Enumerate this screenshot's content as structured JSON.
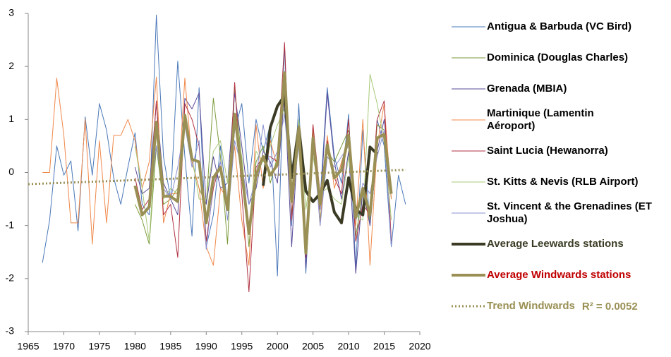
{
  "chart_data": {
    "type": "line",
    "x": [
      1967,
      1968,
      1969,
      1970,
      1971,
      1972,
      1973,
      1974,
      1975,
      1976,
      1977,
      1978,
      1979,
      1980,
      1981,
      1982,
      1983,
      1984,
      1985,
      1986,
      1987,
      1988,
      1989,
      1990,
      1991,
      1992,
      1993,
      1994,
      1995,
      1996,
      1997,
      1998,
      1999,
      2000,
      2001,
      2002,
      2003,
      2004,
      2005,
      2006,
      2007,
      2008,
      2009,
      2010,
      2011,
      2012,
      2013,
      2014,
      2015,
      2016,
      2017,
      2018
    ],
    "xlim": [
      1965,
      2020
    ],
    "xticks": [
      1965,
      1970,
      1975,
      1980,
      1985,
      1990,
      1995,
      2000,
      2005,
      2010,
      2015,
      2020
    ],
    "ylim": [
      -3,
      3
    ],
    "yticks": [
      -3,
      -2,
      -1,
      0,
      1,
      2,
      3
    ],
    "series": [
      {
        "name": "Antigua & Barbuda (VC Bird)",
        "color": "#4a78b8",
        "line_width": 1,
        "values": [
          -1.7,
          -0.9,
          0.5,
          -0.05,
          0.22,
          -1.1,
          1.05,
          -0.05,
          1.3,
          0.8,
          -0.1,
          -0.6,
          0.1,
          0.75,
          -0.6,
          -0.8,
          2.97,
          0.3,
          -0.5,
          2.1,
          0.3,
          -1.2,
          1.6,
          -1.4,
          -0.8,
          0.5,
          -0.6,
          0.8,
          1.3,
          -0.2,
          1.0,
          0.4,
          0.9,
          -1.95,
          2.4,
          -1.0,
          1.3,
          -1.9,
          0.6,
          -0.5,
          1.6,
          0.3,
          -0.2,
          1.1,
          -1.8,
          0.8,
          -1.0,
          1.0,
          0.5,
          -1.4,
          -0.05,
          -0.6
        ]
      },
      {
        "name": "Dominica (Douglas Charles)",
        "color": "#7a9a3a",
        "line_width": 1,
        "values": [
          null,
          null,
          null,
          null,
          null,
          null,
          null,
          null,
          null,
          null,
          null,
          null,
          null,
          -0.6,
          -0.9,
          -1.35,
          0.5,
          -0.6,
          -0.5,
          -0.3,
          1.0,
          0.2,
          -0.3,
          -0.6,
          1.4,
          0.3,
          -1.35,
          1.6,
          0.2,
          -1.4,
          0.2,
          0.5,
          -0.2,
          0.3,
          1.9,
          -0.8,
          0.6,
          -1.5,
          0.8,
          -0.9,
          0.4,
          0.2,
          0.5,
          0.8,
          -1.2,
          -0.4,
          -0.9,
          0.9,
          0.8,
          -0.5,
          null,
          null
        ]
      },
      {
        "name": "Grenada (MBIA)",
        "color": "#5a4a9a",
        "line_width": 1,
        "values": [
          null,
          null,
          null,
          null,
          null,
          null,
          null,
          null,
          null,
          null,
          null,
          null,
          null,
          0.1,
          -0.4,
          -0.3,
          1.3,
          -0.2,
          -0.5,
          -0.8,
          1.4,
          1.2,
          1.5,
          -0.6,
          0.3,
          -0.3,
          -0.2,
          1.5,
          0.5,
          -0.6,
          -0.3,
          0.4,
          0.2,
          -0.2,
          1.5,
          -1.4,
          0.9,
          -1.8,
          0.5,
          -0.7,
          1.5,
          0.2,
          -0.5,
          0.4,
          -1.9,
          -0.3,
          -1.0,
          0.4,
          1.0,
          -0.3,
          null,
          null
        ]
      },
      {
        "name": "Martinique (Lamentin Aéroport)",
        "color": "#f0884a",
        "line_width": 1,
        "values": [
          0,
          0,
          1.78,
          0.7,
          -0.95,
          -0.95,
          1.0,
          -1.35,
          0.6,
          -0.95,
          0.7,
          0.7,
          1.0,
          0.6,
          -0.3,
          0.2,
          1.8,
          -0.95,
          -0.4,
          -0.4,
          1.78,
          0.2,
          -0.3,
          -1.4,
          -1.75,
          -0.3,
          -0.5,
          0.5,
          -0.9,
          -1.75,
          0.9,
          -0.3,
          0.6,
          0.1,
          1.6,
          -0.5,
          0.8,
          -1.3,
          0.9,
          -1.0,
          0.7,
          -0.3,
          0.2,
          0.6,
          -1.0,
          1.0,
          -1.75,
          0.5,
          1.3,
          -0.5,
          null,
          null
        ]
      },
      {
        "name": "Saint Lucia (Hewanorra)",
        "color": "#b03040",
        "line_width": 1,
        "values": [
          null,
          null,
          null,
          null,
          null,
          null,
          null,
          null,
          null,
          null,
          null,
          null,
          null,
          -0.1,
          -0.7,
          -0.5,
          1.35,
          -0.8,
          -0.6,
          -1.6,
          1.3,
          1.0,
          0.5,
          -1.3,
          -0.3,
          0.2,
          -0.7,
          1.7,
          -0.4,
          -2.25,
          0.1,
          0.3,
          0.3,
          0.2,
          2.45,
          -0.9,
          0.9,
          -1.6,
          0.9,
          -0.4,
          0.6,
          -0.1,
          -0.4,
          1.0,
          -1.3,
          -0.6,
          -0.8,
          1.0,
          1.35,
          -1.3,
          null,
          null
        ]
      },
      {
        "name": "St. Kitts & Nevis (RLB Airport)",
        "color": "#a8c878",
        "line_width": 1,
        "values": [
          null,
          null,
          null,
          null,
          null,
          null,
          null,
          null,
          null,
          null,
          null,
          null,
          null,
          0.5,
          -0.3,
          -1.3,
          0.8,
          -0.5,
          -0.3,
          -0.4,
          0.9,
          0.3,
          -0.5,
          -0.5,
          0.4,
          0.6,
          -0.2,
          1.0,
          0.3,
          -1.1,
          0.4,
          0.2,
          0.5,
          0.9,
          1.2,
          -0.4,
          1.0,
          -0.7,
          0.3,
          -0.4,
          -0.3,
          -0.5,
          -0.6,
          0.3,
          -0.8,
          -0.9,
          1.85,
          1.3,
          0.6,
          -0.9,
          null,
          null
        ]
      },
      {
        "name": "St. Vincent & the Grenadines (ET Joshua)",
        "color": "#8a90d0",
        "line_width": 1,
        "values": [
          null,
          null,
          null,
          null,
          null,
          null,
          null,
          null,
          null,
          null,
          null,
          null,
          null,
          -0.3,
          -0.8,
          -0.6,
          0.5,
          -0.3,
          -0.5,
          0.1,
          0.9,
          0.1,
          0.6,
          -1.45,
          -0.2,
          0.2,
          -0.9,
          0.6,
          0.1,
          -0.6,
          -0.1,
          0.9,
          0.1,
          0.4,
          1.1,
          -0.5,
          0.5,
          -1.3,
          0.6,
          -1.0,
          0.3,
          0.1,
          0.3,
          0.5,
          -0.9,
          -0.2,
          -0.4,
          0.3,
          0.8,
          -1.4,
          null,
          null
        ]
      },
      {
        "name": "Average Leewards stations",
        "color": "#3b3b25",
        "line_width": 4,
        "values": [
          null,
          null,
          null,
          null,
          null,
          null,
          null,
          null,
          null,
          null,
          null,
          null,
          null,
          null,
          null,
          null,
          null,
          null,
          null,
          null,
          null,
          null,
          null,
          null,
          null,
          null,
          null,
          null,
          null,
          null,
          null,
          -0.25,
          0.85,
          1.25,
          1.45,
          -0.1,
          0.85,
          -0.35,
          -0.55,
          -0.4,
          -0.15,
          -0.75,
          -0.95,
          -0.1,
          -0.7,
          -0.8,
          0.48,
          0.35,
          null,
          null,
          null,
          null
        ]
      },
      {
        "name": "Average Windwards stations",
        "color": "#9a9055",
        "line_width": 4,
        "values": [
          null,
          null,
          null,
          null,
          null,
          null,
          null,
          null,
          null,
          null,
          null,
          null,
          null,
          -0.25,
          -0.8,
          -0.65,
          0.95,
          -0.45,
          -0.45,
          -0.55,
          1.08,
          0.25,
          0.2,
          -0.95,
          -0.1,
          0.1,
          -0.7,
          1.1,
          0.0,
          -1.15,
          -0.05,
          0.3,
          -0.05,
          0.15,
          1.88,
          -0.55,
          0.85,
          -1.52,
          0.65,
          -0.6,
          0.52,
          -0.1,
          0.05,
          0.7,
          -0.85,
          -0.3,
          -0.8,
          0.65,
          0.72,
          -0.4,
          null,
          null
        ]
      }
    ],
    "trend": {
      "name": "Trend Windwards",
      "color": "#9a9055",
      "line_width": 3,
      "dash": "2 3",
      "x": [
        1965,
        2018
      ],
      "values": [
        -0.22,
        0.05
      ],
      "annotation": "R² = 0.0052"
    }
  }
}
